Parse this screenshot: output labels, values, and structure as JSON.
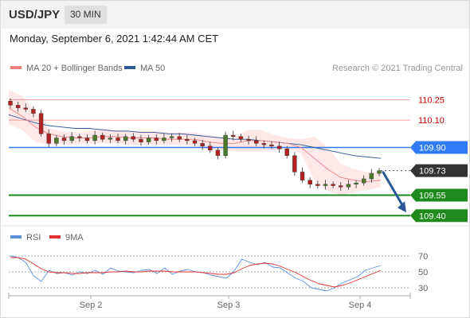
{
  "header": {
    "symbol": "USD/JPY",
    "interval": "30 MIN"
  },
  "timestamp": "Monday, September 6, 2021 1:42:44 AM CET",
  "legend": {
    "ma20": "MA 20 + Bollinger Bands",
    "ma50": "MA 50",
    "credit": "Research © 2021 Trading Central"
  },
  "rsi_legend": {
    "rsi": "RSI",
    "ma9": "9MA"
  },
  "colors": {
    "ma20": "#f08080",
    "ma50": "#2b5797",
    "bollinger_fill": "#fde3e3",
    "candle": "#b22222",
    "resistance_line": "#f0a0a0",
    "pivot_line": "#2f7cf6",
    "support_line": "#1e8a1e",
    "arrow": "#2b5797",
    "rsi": "#5b8fdc",
    "rsi_ma": "#e53030"
  },
  "chart_data": [
    {
      "type": "line",
      "title": "USD/JPY 30 MIN",
      "x_tick_labels": [
        "Sep 2",
        "Sep 3",
        "Sep 4"
      ],
      "ylim": [
        109.32,
        110.34
      ],
      "levels": [
        {
          "value": 110.25,
          "label": "110.25",
          "kind": "resistance"
        },
        {
          "value": 110.1,
          "label": "110.10",
          "kind": "resistance"
        },
        {
          "value": 109.9,
          "label": "109.90",
          "kind": "pivot"
        },
        {
          "value": 109.73,
          "label": "109.73",
          "kind": "last_price"
        },
        {
          "value": 109.55,
          "label": "109.55",
          "kind": "support"
        },
        {
          "value": 109.4,
          "label": "109.40",
          "kind": "support"
        }
      ],
      "series": [
        {
          "name": "MA 50",
          "values": [
            110.14,
            110.11,
            110.08,
            110.06,
            110.05,
            110.04,
            110.04,
            110.03,
            110.02,
            110.02,
            110.01,
            110.01,
            110.0,
            110.0,
            109.99,
            109.98,
            109.97,
            109.96,
            109.96,
            109.95,
            109.94,
            109.93,
            109.92,
            109.9,
            109.88,
            109.86,
            109.84,
            109.83,
            109.82
          ]
        },
        {
          "name": "MA 20",
          "values": [
            110.19,
            110.13,
            110.05,
            110.0,
            109.98,
            109.97,
            109.97,
            109.98,
            109.98,
            109.97,
            109.97,
            109.97,
            109.96,
            109.96,
            109.96,
            109.94,
            109.93,
            109.93,
            109.95,
            109.95,
            109.94,
            109.93,
            109.9,
            109.82,
            109.74,
            109.68,
            109.66,
            109.65,
            109.66
          ]
        },
        {
          "name": "Price",
          "values": [
            110.21,
            110.19,
            110.18,
            110.15,
            110.0,
            109.93,
            109.97,
            109.95,
            109.98,
            109.97,
            109.95,
            109.99,
            109.96,
            109.97,
            109.95,
            109.98,
            109.96,
            109.94,
            109.97,
            109.95,
            109.97,
            109.98,
            109.96,
            109.95,
            109.93,
            109.91,
            109.88,
            109.84,
            109.99,
            109.98,
            109.96,
            109.95,
            109.93,
            109.92,
            109.91,
            109.89,
            109.84,
            109.72,
            109.66,
            109.63,
            109.62,
            109.63,
            109.62,
            109.61,
            109.63,
            109.64,
            109.67,
            109.71,
            109.73
          ]
        }
      ],
      "bollinger_band": {
        "upper": [
          110.32,
          110.28,
          110.16,
          110.04,
          110.02,
          110.01,
          110.02,
          110.04,
          110.03,
          110.02,
          110.02,
          110.02,
          110.01,
          110.01,
          110.01,
          109.99,
          109.97,
          109.98,
          110.03,
          110.03,
          109.99,
          109.97,
          109.96,
          109.98,
          109.9,
          109.78,
          109.74,
          109.72,
          109.72
        ],
        "lower": [
          110.07,
          110.03,
          109.94,
          109.92,
          109.92,
          109.92,
          109.93,
          109.93,
          109.93,
          109.92,
          109.92,
          109.92,
          109.92,
          109.92,
          109.91,
          109.89,
          109.88,
          109.87,
          109.87,
          109.87,
          109.88,
          109.89,
          109.86,
          109.66,
          109.58,
          109.55,
          109.57,
          109.59,
          109.61
        ]
      },
      "forecast_arrow": {
        "from": 109.73,
        "to": 109.4
      }
    },
    {
      "type": "line",
      "title": "",
      "x_tick_labels": [
        "Sep 2",
        "Sep 3",
        "Sep 4"
      ],
      "y_tick_labels": [
        "70",
        "50",
        "30"
      ],
      "ylim": [
        20,
        80
      ],
      "series": [
        {
          "name": "RSI",
          "values": [
            70,
            68,
            62,
            45,
            38,
            52,
            48,
            49,
            46,
            50,
            48,
            52,
            47,
            55,
            51,
            50,
            49,
            52,
            53,
            48,
            55,
            47,
            51,
            53,
            50,
            49,
            46,
            44,
            42,
            51,
            66,
            62,
            59,
            62,
            56,
            55,
            48,
            42,
            38,
            30,
            28,
            26,
            30,
            36,
            40,
            44,
            52,
            55,
            58
          ]
        },
        {
          "name": "9MA",
          "values": [
            68,
            68,
            66,
            60,
            54,
            50,
            49,
            49,
            48,
            48,
            49,
            49,
            49,
            50,
            50,
            51,
            50,
            50,
            51,
            51,
            51,
            50,
            50,
            50,
            50,
            49,
            48,
            47,
            47,
            49,
            54,
            58,
            60,
            61,
            60,
            57,
            53,
            49,
            44,
            39,
            35,
            33,
            31,
            33,
            36,
            40,
            44,
            48,
            52
          ]
        }
      ]
    }
  ]
}
